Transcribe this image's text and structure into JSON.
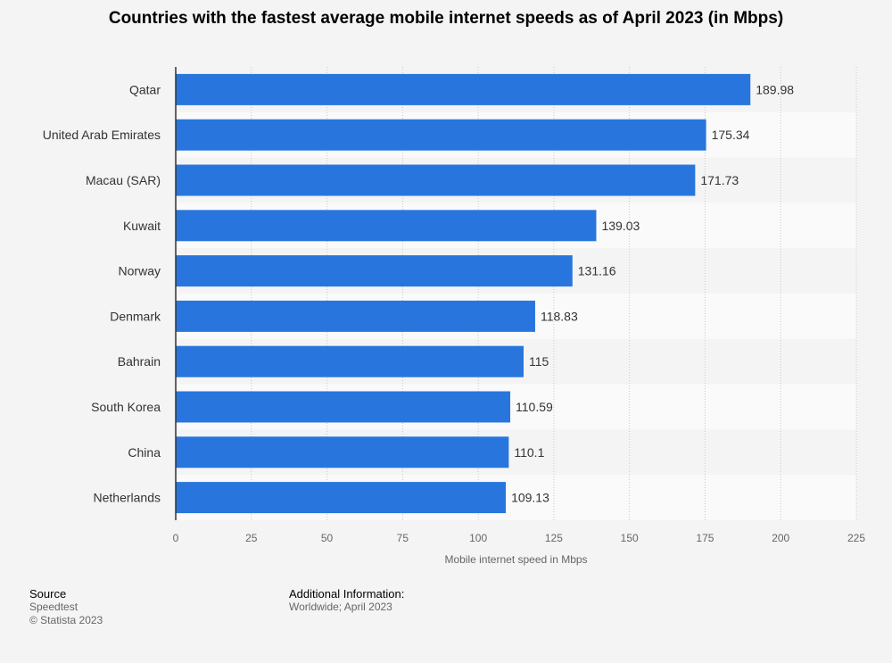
{
  "chart_data": {
    "type": "bar",
    "orientation": "horizontal",
    "title": "Countries with the fastest average mobile internet speeds as of April 2023 (in Mbps)",
    "xlabel": "Mobile internet speed in Mbps",
    "ylabel": "",
    "categories": [
      "Qatar",
      "United Arab Emirates",
      "Macau (SAR)",
      "Kuwait",
      "Norway",
      "Denmark",
      "Bahrain",
      "South Korea",
      "China",
      "Netherlands"
    ],
    "values": [
      189.98,
      175.34,
      171.73,
      139.03,
      131.16,
      118.83,
      115,
      110.59,
      110.1,
      109.13
    ],
    "value_labels": [
      "189.98",
      "175.34",
      "171.73",
      "139.03",
      "131.16",
      "118.83",
      "115",
      "110.59",
      "110.1",
      "109.13"
    ],
    "xlim": [
      0,
      225
    ],
    "ticks": [
      0,
      25,
      50,
      75,
      100,
      125,
      150,
      175,
      200,
      225
    ],
    "grid": true,
    "bar_color": "#2876dd"
  },
  "footer": {
    "source_heading": "Source",
    "source_name": "Speedtest",
    "copyright": "© Statista 2023",
    "additional_heading": "Additional Information:",
    "additional_text": "Worldwide; April 2023"
  }
}
